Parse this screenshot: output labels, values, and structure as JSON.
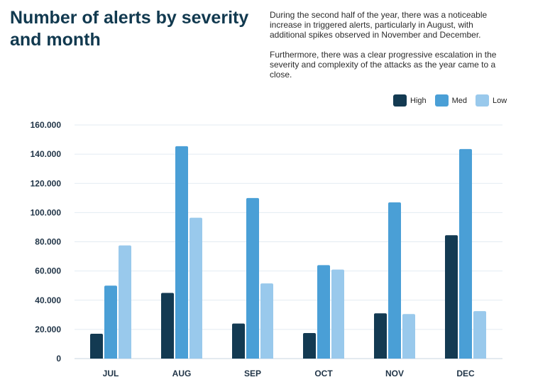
{
  "header": {
    "title": "Number of alerts by severity and month",
    "description": [
      "During the second half of the year, there was a noticeable increase in triggered alerts, particularly in August, with additional spikes observed in November and December.",
      "Furthermore, there was a clear progressive escalation in the severity and complexity of the attacks as the year came to a close."
    ]
  },
  "legend": [
    {
      "label": "High",
      "color": "#133a52"
    },
    {
      "label": "Med",
      "color": "#4a9fd6"
    },
    {
      "label": "Low",
      "color": "#99c9ec"
    }
  ],
  "chart_data": {
    "type": "bar",
    "title": "Number of alerts by severity and month",
    "xlabel": "",
    "ylabel": "",
    "categories": [
      "JUL",
      "AUG",
      "SEP",
      "OCT",
      "NOV",
      "DEC"
    ],
    "series": [
      {
        "name": "High",
        "color": "#133a52",
        "values": [
          17000,
          45000,
          24000,
          17500,
          31000,
          84500
        ]
      },
      {
        "name": "Med",
        "color": "#4a9fd6",
        "values": [
          50000,
          145500,
          110000,
          64000,
          107000,
          143500
        ]
      },
      {
        "name": "Low",
        "color": "#99c9ec",
        "values": [
          77500,
          96500,
          51500,
          61000,
          30500,
          32500
        ]
      }
    ],
    "ylim": [
      0,
      160000
    ],
    "yticks": [
      0,
      20000,
      40000,
      60000,
      80000,
      100000,
      120000,
      140000,
      160000
    ],
    "ytick_labels": [
      "0",
      "20.000",
      "40.000",
      "60.000",
      "80.000",
      "100.000",
      "120.000",
      "140.000",
      "160.000"
    ],
    "grid": true,
    "legend_position": "top-right"
  }
}
